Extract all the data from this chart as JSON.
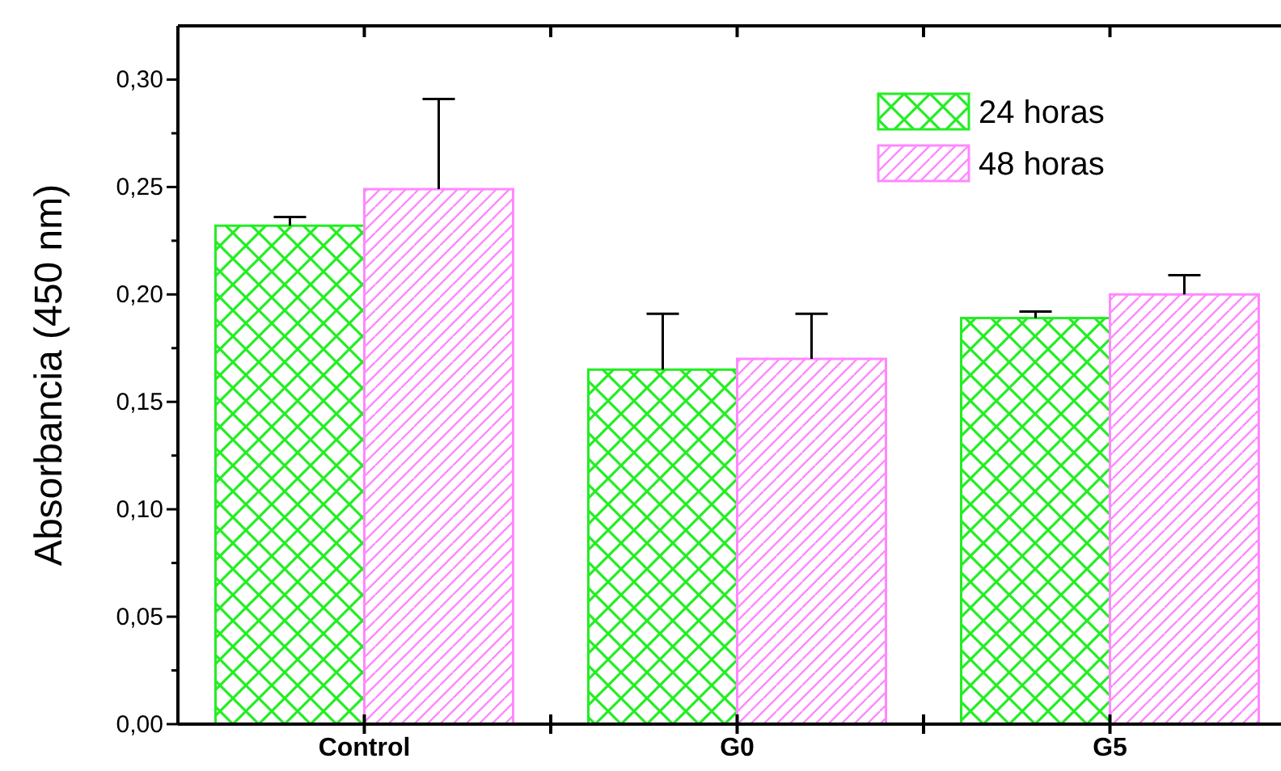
{
  "chart_data": {
    "type": "bar",
    "ylabel": "Absorbancia (450 nm)",
    "categories": [
      "Control",
      "G0",
      "G5"
    ],
    "series": [
      {
        "name": "24 horas",
        "color": "#22ee22",
        "values": [
          0.232,
          0.165,
          0.189
        ],
        "errors": [
          0.004,
          0.026,
          0.003
        ]
      },
      {
        "name": "48 horas",
        "color": "#ff88ff",
        "values": [
          0.249,
          0.17,
          0.2
        ],
        "errors": [
          0.042,
          0.021,
          0.009
        ]
      }
    ],
    "ylim": [
      0,
      0.325
    ],
    "yticks": [
      {
        "value": 0,
        "label": "0,00"
      },
      {
        "value": 0.025,
        "label": null
      },
      {
        "value": 0.05,
        "label": "0,05"
      },
      {
        "value": 0.075,
        "label": null
      },
      {
        "value": 0.1,
        "label": "0,10"
      },
      {
        "value": 0.125,
        "label": null
      },
      {
        "value": 0.15,
        "label": "0,15"
      },
      {
        "value": 0.175,
        "label": null
      },
      {
        "value": 0.2,
        "label": "0,20"
      },
      {
        "value": 0.225,
        "label": null
      },
      {
        "value": 0.25,
        "label": "0,25"
      },
      {
        "value": 0.275,
        "label": null
      },
      {
        "value": 0.3,
        "label": "0,30"
      }
    ],
    "legend": "top right"
  }
}
